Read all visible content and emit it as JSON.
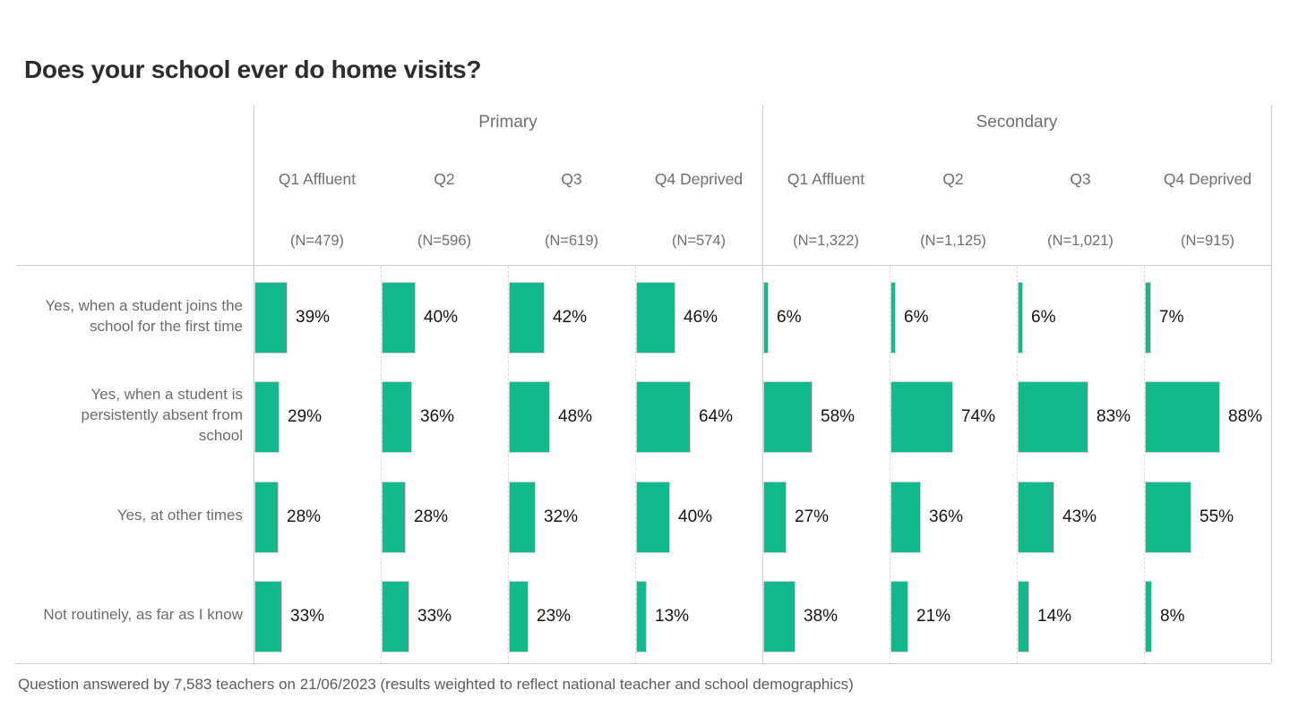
{
  "title": "Does your school ever do home visits?",
  "footnote": "Question answered by 7,583 teachers on 21/06/2023 (results weighted to reflect national teacher and school demographics)",
  "colors": {
    "bar": "#12b98c",
    "grid_solid": "#cfcfcf",
    "grid_dashed": "#dcdcdc",
    "title_text": "#2d2d2d",
    "header_text": "#6f6f6f",
    "row_label_text": "#6c6c6c",
    "value_text": "#151515",
    "footnote_text": "#5c5c5c"
  },
  "chart_data": {
    "type": "bar",
    "orientation": "horizontal",
    "unit": "%",
    "value_axis_max": 100,
    "legend": "none",
    "groups": [
      {
        "label": "Primary",
        "columns": [
          {
            "label": "Q1 Affluent",
            "n": "(N=479)"
          },
          {
            "label": "Q2",
            "n": "(N=596)"
          },
          {
            "label": "Q3",
            "n": "(N=619)"
          },
          {
            "label": "Q4 Deprived",
            "n": "(N=574)"
          }
        ]
      },
      {
        "label": "Secondary",
        "columns": [
          {
            "label": "Q1 Affluent",
            "n": "(N=1,322)"
          },
          {
            "label": "Q2",
            "n": "(N=1,125)"
          },
          {
            "label": "Q3",
            "n": "(N=1,021)"
          },
          {
            "label": "Q4 Deprived",
            "n": "(N=915)"
          }
        ]
      }
    ],
    "rows": [
      {
        "label": "Yes, when a student joins the\nschool for the first time",
        "values": [
          39,
          40,
          42,
          46,
          6,
          6,
          6,
          7
        ]
      },
      {
        "label": "Yes, when a student is\npersistently absent from\nschool",
        "values": [
          29,
          36,
          48,
          64,
          58,
          74,
          83,
          88
        ]
      },
      {
        "label": "Yes, at other times",
        "values": [
          28,
          28,
          32,
          40,
          27,
          36,
          43,
          55
        ]
      },
      {
        "label": "Not routinely, as far as I know",
        "values": [
          33,
          33,
          23,
          13,
          38,
          21,
          14,
          8
        ]
      }
    ]
  }
}
